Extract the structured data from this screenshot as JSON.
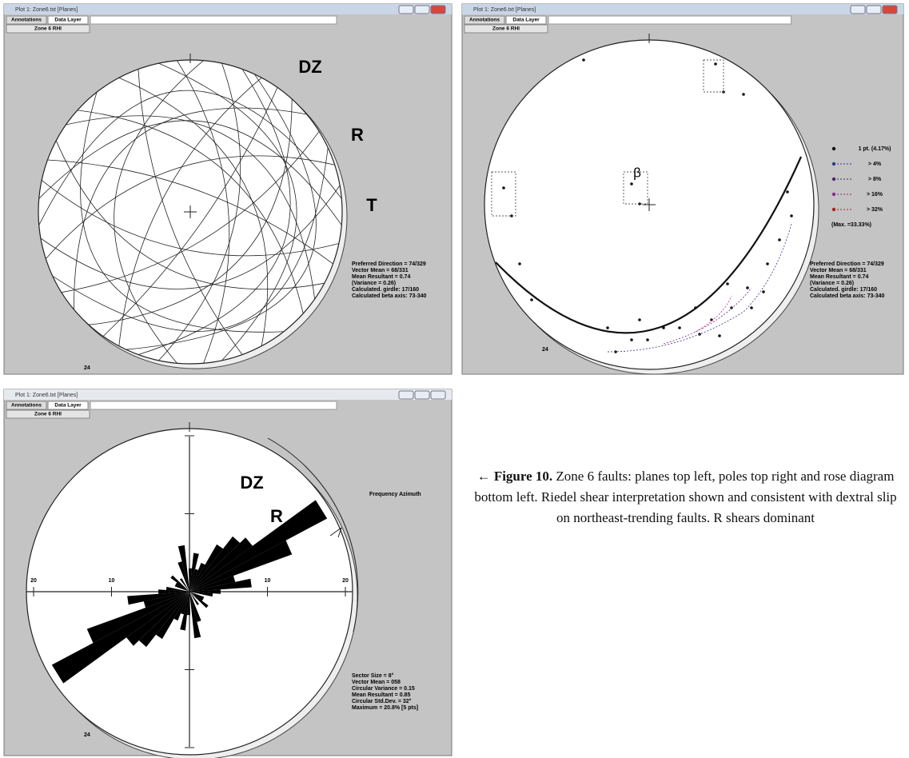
{
  "windows": [
    {
      "title": "Plot 1: Zone6.txt  [Planes]",
      "tabs": [
        "Annotations",
        "Data Layer"
      ],
      "layer": "Zone 6 RHI",
      "labels": [
        "DZ",
        "R",
        "T"
      ],
      "stats": [
        "Preferred Direction = 74/329",
        "Vector Mean = 68/331",
        "Mean Resultant = 0.74",
        "(Variance = 0.26)",
        "Calculated. girdle: 17/160",
        "Calculated beta axis: 73-340"
      ],
      "count": 24
    },
    {
      "title": "Plot 1: Zone6.txt  [Planes]",
      "tabs": [
        "Annotations",
        "Data Layer"
      ],
      "layer": "Zone 6 RHI",
      "symbol": "β",
      "legend": [
        "1 pt. (4.17%)",
        "> 4%",
        "> 8%",
        "> 16%",
        "> 32%",
        "(Max. =33.33%)"
      ],
      "stats": [
        "Preferred Direction = 74/329",
        "Vector Mean = 68/331",
        "Mean Resultant = 0.74",
        "(Variance = 0.26)",
        "Calculated. girdle: 17/160",
        "Calculated beta axis: 73-340"
      ],
      "count": 24
    },
    {
      "title": "Plot 1: Zone6.txt  [Planes]",
      "tabs": [
        "Annotations",
        "Data Layer"
      ],
      "layer": "Zone 6 RHI",
      "labels": [
        "DZ",
        "R"
      ],
      "axis_title": "Frequency Azimuth",
      "axis_labels": [
        "20",
        "10",
        "10",
        "20"
      ],
      "stats": [
        "Sector Size = 8°",
        "Vector Mean = 058",
        "Circular Variance = 0.15",
        "Mean Resultant = 0.85",
        "Circular Std.Dev. = 32°",
        "Maximum = 20.8% [5 pts]"
      ],
      "count": 24
    }
  ],
  "caption": {
    "label": "← Figure 10.",
    "text": "Zone 6 faults: planes top left, poles top right and rose diagram bottom left. Riedel shear interpretation shown and consistent with dextral slip on northeast-trending faults. R shears dominant"
  }
}
